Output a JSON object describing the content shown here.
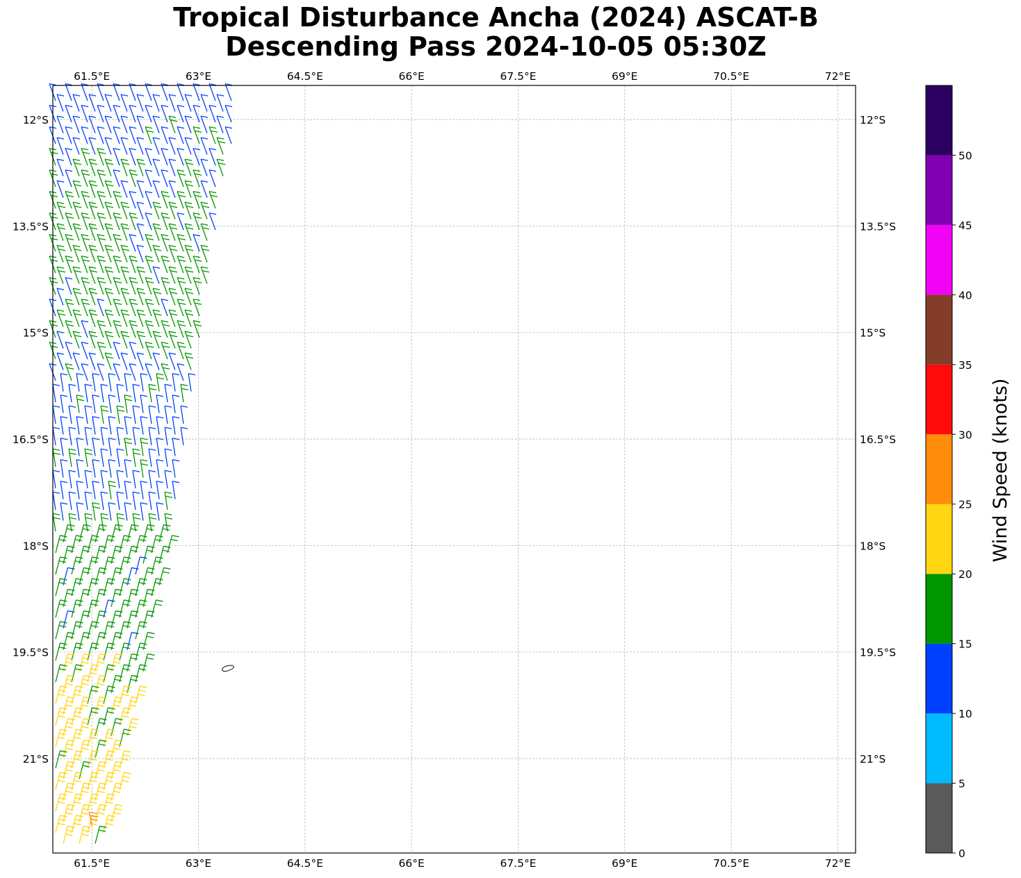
{
  "title": {
    "line1": "Tropical Disturbance Ancha (2024) ASCAT-B",
    "line2": "Descending Pass 2024-10-05 05:30Z"
  },
  "map": {
    "lon_range": [
      60.95,
      72.25
    ],
    "lat_range": [
      -22.33,
      -11.52
    ],
    "lon_ticks": [
      61.5,
      63,
      64.5,
      66,
      67.5,
      69,
      70.5,
      72
    ],
    "lon_tick_labels": [
      "61.5°E",
      "63°E",
      "64.5°E",
      "66°E",
      "67.5°E",
      "69°E",
      "70.5°E",
      "72°E"
    ],
    "lat_ticks": [
      -12,
      -13.5,
      -15,
      -16.5,
      -18,
      -19.5,
      -21
    ],
    "lat_tick_labels": [
      "12°S",
      "13.5°S",
      "15°S",
      "16.5°S",
      "18°S",
      "19.5°S",
      "21°S"
    ],
    "gridlines": true,
    "gridline_style": "dashed",
    "island_outline_color": "#333333"
  },
  "colorbar": {
    "label": "Wind Speed (knots)",
    "bounds": [
      0,
      5,
      10,
      15,
      20,
      25,
      30,
      35,
      40,
      45,
      50,
      55
    ],
    "tick_labels": [
      "0",
      "5",
      "10",
      "15",
      "20",
      "25",
      "30",
      "35",
      "40",
      "45",
      "50"
    ],
    "colors": [
      "#5a5a5a",
      "#00bbff",
      "#0040ff",
      "#009600",
      "#ffd611",
      "#ff8c0a",
      "#ff0b0b",
      "#833d28",
      "#f203f5",
      "#8200b3",
      "#2c0060"
    ]
  },
  "chart_data": {
    "type": "wind_barbs",
    "units": "knots",
    "swath": "west-edge ASCAT-B swath, winds mostly from the south-east",
    "bands": [
      {
        "lat_range": [
          -13.0,
          -11.6
        ],
        "dominant_speed_kt": "10-15",
        "color": "#0040ff"
      },
      {
        "lat_range": [
          -15.0,
          -12.6
        ],
        "dominant_speed_kt": "15-20",
        "color": "#009600"
      },
      {
        "lat_range": [
          -17.7,
          -15.2
        ],
        "dominant_speed_kt": "10-15",
        "color": "#0040ff"
      },
      {
        "lat_range": [
          -19.9,
          -17.5
        ],
        "dominant_speed_kt": "15-20",
        "color": "#009600"
      },
      {
        "lat_range": [
          -22.3,
          -19.8
        ],
        "dominant_speed_kt": "20-25",
        "color": "#ffd611"
      },
      {
        "lat_range": [
          -22.0,
          -21.9
        ],
        "dominant_speed_kt": "25-30",
        "color": "#ff8c0a",
        "note": "single barb near 61.5°E"
      }
    ]
  }
}
